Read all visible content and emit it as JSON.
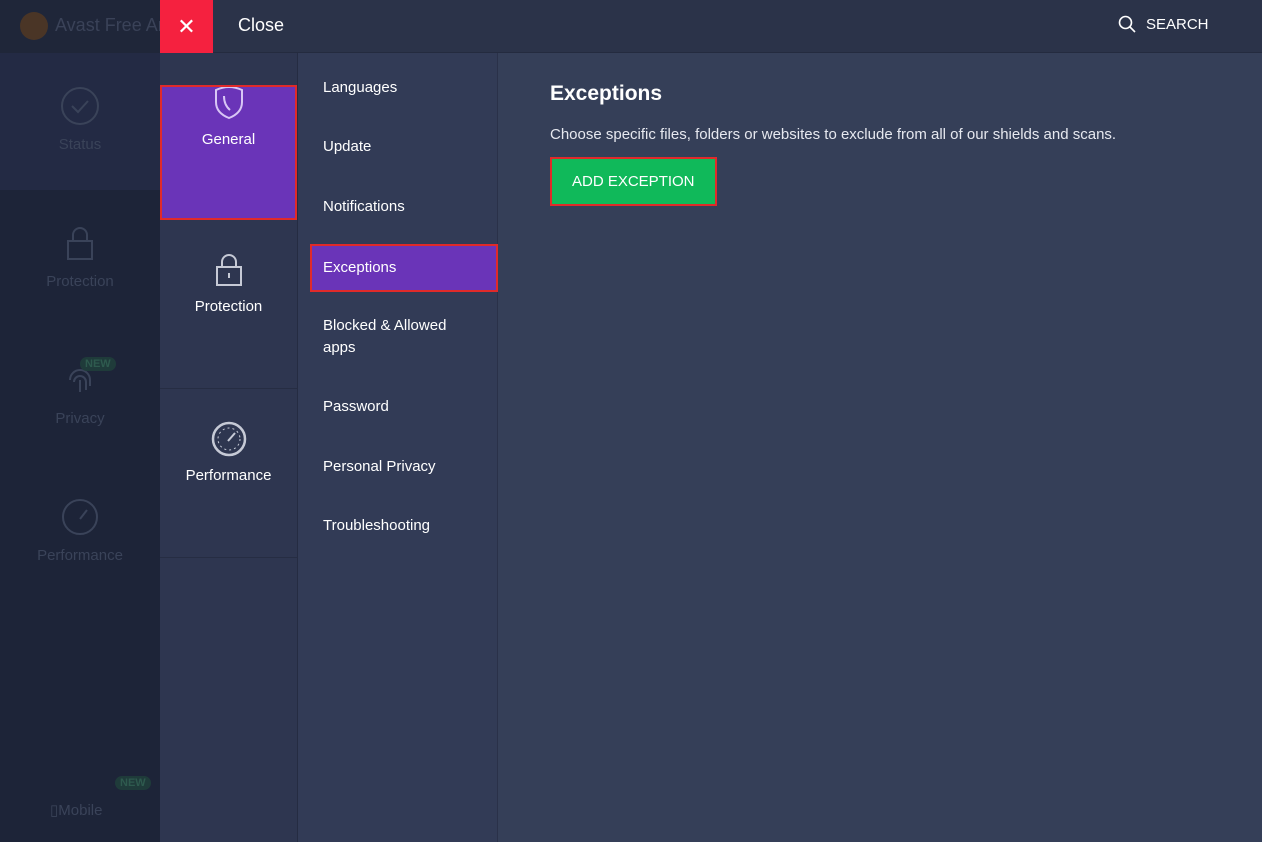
{
  "app": {
    "title": "Avast Free Antivirus"
  },
  "topbar": {
    "close_label": "Close",
    "search_label": "SEARCH"
  },
  "left_nav": [
    {
      "label": "Status",
      "icon": "check-circle-icon"
    },
    {
      "label": "Protection",
      "icon": "lock-icon"
    },
    {
      "label": "Privacy",
      "icon": "fingerprint-icon",
      "badge": "NEW"
    },
    {
      "label": "Performance",
      "icon": "gauge-icon"
    }
  ],
  "mobile": {
    "label": "Mobile",
    "badge": "NEW"
  },
  "categories": [
    {
      "label": "General",
      "icon": "shield-icon",
      "selected": true
    },
    {
      "label": "Protection",
      "icon": "lock-icon"
    },
    {
      "label": "Performance",
      "icon": "gauge-icon"
    }
  ],
  "submenu": [
    "Languages",
    "Update",
    "Notifications",
    "Exceptions",
    "Blocked & Allowed apps",
    "Password",
    "Personal Privacy",
    "Troubleshooting"
  ],
  "submenu_selected": "Exceptions",
  "content": {
    "title": "Exceptions",
    "description": "Choose specific files, folders or websites to exclude from all of our shields and scans.",
    "button": "ADD EXCEPTION"
  },
  "colors": {
    "accent": "#6a34b8",
    "close": "#f5213f",
    "button": "#10b95a",
    "highlight": "#e02a2a"
  }
}
